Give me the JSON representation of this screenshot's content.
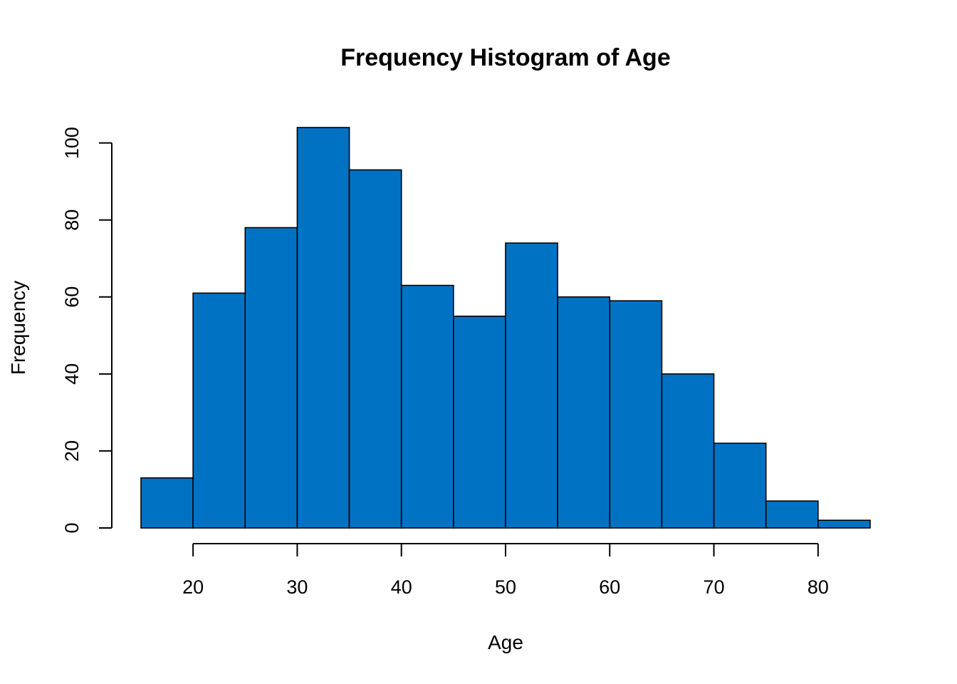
{
  "chart_data": {
    "type": "bar",
    "title": "Frequency Histogram of Age",
    "xlabel": "Age",
    "ylabel": "Frequency",
    "bin_edges": [
      15,
      20,
      25,
      30,
      35,
      40,
      45,
      50,
      55,
      60,
      65,
      70,
      75,
      80,
      85
    ],
    "values": [
      13,
      61,
      78,
      104,
      93,
      63,
      55,
      74,
      60,
      59,
      40,
      22,
      7,
      2
    ],
    "xlim": [
      15,
      85
    ],
    "ylim": [
      0,
      104
    ],
    "x_ticks": [
      20,
      30,
      40,
      50,
      60,
      70,
      80
    ],
    "y_ticks": [
      0,
      20,
      40,
      60,
      80,
      100
    ],
    "bar_color": "#0072C4",
    "grid": false,
    "legend": "none"
  }
}
